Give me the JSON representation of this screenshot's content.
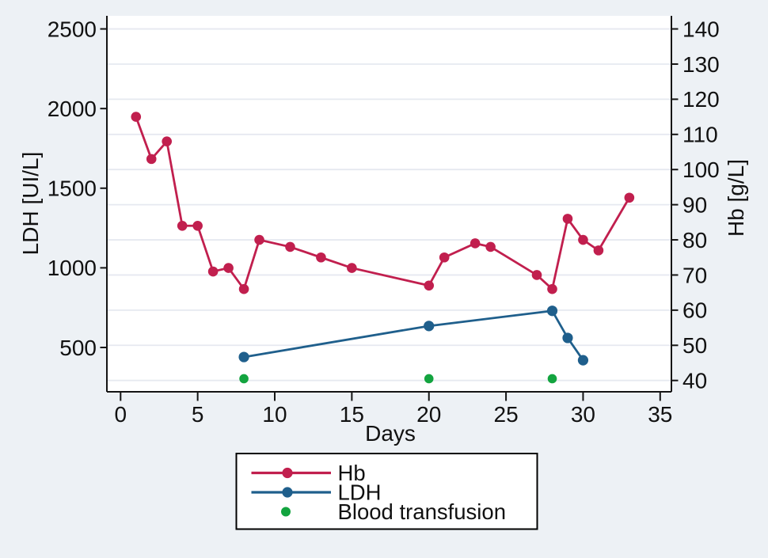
{
  "chart_data": {
    "type": "line",
    "title": "",
    "xlabel": "Days",
    "x_ticks": [
      0,
      5,
      10,
      15,
      20,
      25,
      30,
      35
    ],
    "x_range": [
      0,
      35
    ],
    "axes": {
      "left": {
        "label": "LDH [UI/L]",
        "ticks": [
          500,
          1000,
          1500,
          2000,
          2500
        ],
        "range": [
          220,
          2580
        ]
      },
      "right": {
        "label": "Hb [g/L]",
        "ticks": [
          40,
          50,
          60,
          70,
          80,
          90,
          100,
          110,
          120,
          130,
          140
        ],
        "range": [
          37,
          144
        ]
      }
    },
    "grid": {
      "horizontal": true,
      "follows": "right-axis-ticks",
      "vertical": false
    },
    "legend_position": "bottom-center",
    "series": [
      {
        "name": "Hb",
        "axis": "right",
        "color": "#c11f4e",
        "marker": "circle",
        "line": true,
        "x": [
          1,
          2,
          3,
          4,
          5,
          6,
          7,
          8,
          9,
          11,
          13,
          15,
          20,
          21,
          23,
          24,
          27,
          28,
          29,
          30,
          31,
          33
        ],
        "values": [
          115,
          103,
          108,
          84,
          84,
          71,
          72,
          66,
          80,
          78,
          75,
          72,
          67,
          75,
          79,
          78,
          70,
          66,
          86,
          80,
          77,
          92
        ]
      },
      {
        "name": "LDH",
        "axis": "left",
        "color": "#1f5f8c",
        "marker": "circle",
        "line": true,
        "x": [
          8,
          20,
          28,
          29,
          30
        ],
        "values": [
          440,
          635,
          730,
          560,
          420
        ]
      },
      {
        "name": "Blood transfusion",
        "axis": "right",
        "color": "#13a43f",
        "marker": "circle",
        "line": false,
        "x": [
          8,
          20,
          28
        ],
        "values": [
          40.5,
          40.5,
          40.5
        ]
      }
    ]
  },
  "colors": {
    "background": "#edf1f5",
    "plot_background": "#ffffff",
    "grid": "#e6e9f0",
    "axis": "#141414",
    "text": "#111111",
    "legend_border": "#000000",
    "legend_background": "#ffffff"
  }
}
